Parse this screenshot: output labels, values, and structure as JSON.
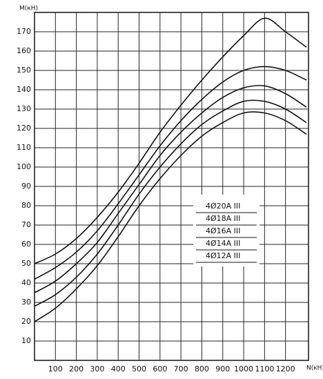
{
  "chart_data": {
    "type": "line",
    "y_label": "M(кН)",
    "x_label": "N(кН)",
    "x": [
      0,
      100,
      200,
      300,
      400,
      500,
      600,
      700,
      800,
      900,
      1000,
      1100,
      1200,
      1300
    ],
    "series": [
      {
        "name": "4Ø20A III",
        "color": "#111111",
        "values": [
          50,
          55,
          63,
          74,
          87,
          102,
          118,
          132,
          145,
          157,
          168,
          177,
          170,
          162
        ]
      },
      {
        "name": "4Ø18A III",
        "color": "#111111",
        "values": [
          42,
          48,
          56,
          67,
          81,
          96,
          111,
          124,
          135,
          144,
          150,
          152,
          150,
          145
        ]
      },
      {
        "name": "4Ø16A III",
        "color": "#111111",
        "values": [
          35,
          41,
          50,
          61,
          76,
          91,
          106,
          118,
          128,
          136,
          141,
          142,
          138,
          131
        ]
      },
      {
        "name": "4Ø14A III",
        "color": "#111111",
        "values": [
          28,
          34,
          43,
          55,
          70,
          86,
          100,
          112,
          122,
          129,
          134,
          134,
          130,
          123
        ]
      },
      {
        "name": "4Ø12A III",
        "color": "#111111",
        "values": [
          20,
          27,
          37,
          49,
          64,
          80,
          94,
          106,
          116,
          123,
          128,
          128,
          124,
          117
        ]
      }
    ],
    "xlim": [
      0,
      1310
    ],
    "ylim": [
      0,
      180
    ],
    "xticks": [
      100,
      200,
      300,
      400,
      500,
      600,
      700,
      800,
      900,
      1000,
      1100,
      1200
    ],
    "yticks": [
      10,
      20,
      30,
      40,
      50,
      60,
      70,
      80,
      90,
      100,
      110,
      120,
      130,
      140,
      150,
      160,
      170
    ],
    "grid": true
  }
}
